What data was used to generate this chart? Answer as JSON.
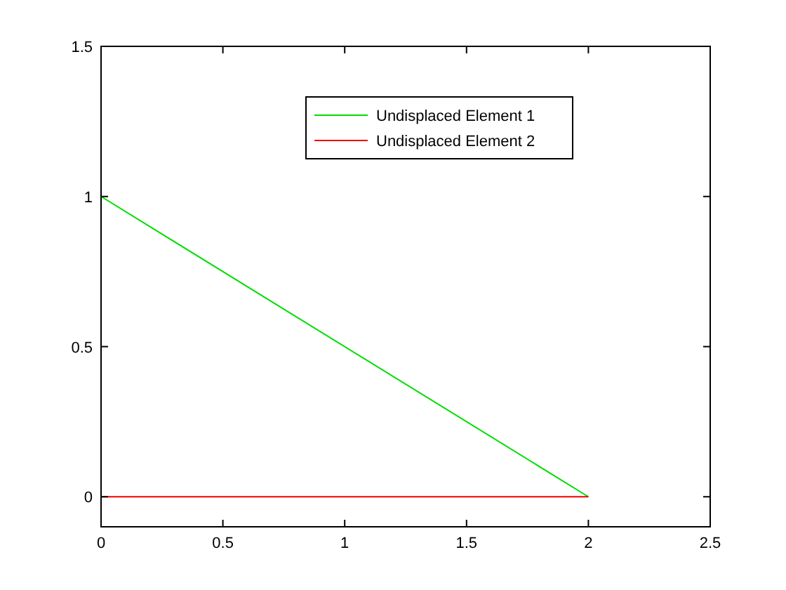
{
  "chart_data": {
    "type": "line",
    "x": [
      0,
      2
    ],
    "xlim": [
      0,
      2.5
    ],
    "ylim": [
      -0.1,
      1.5
    ],
    "xticks": [
      0,
      0.5,
      1,
      1.5,
      2,
      2.5
    ],
    "yticks": [
      0,
      0.5,
      1,
      1.5
    ],
    "legend": "top",
    "grid": false,
    "marker": "none",
    "line_style": "solid",
    "series": [
      {
        "name": "Undisplaced Element 1",
        "color": "#00dd00",
        "values": [
          1,
          0
        ]
      },
      {
        "name": "Undisplaced Element 2",
        "color": "#ee0000",
        "values": [
          0,
          0
        ]
      }
    ]
  }
}
